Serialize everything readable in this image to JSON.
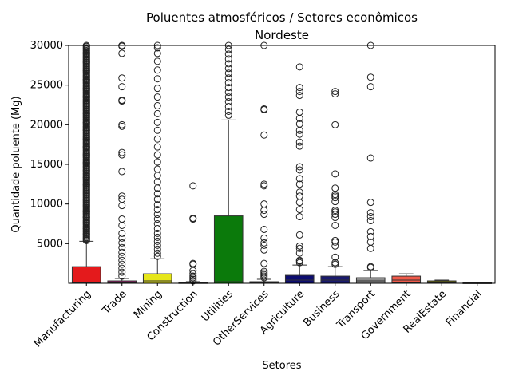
{
  "chart_data": {
    "type": "box",
    "title": "Poluentes atmosféricos / Setores econômicos",
    "subtitle": "Nordeste",
    "xlabel": "Setores",
    "ylabel": "Quantidade poluente (Mg)",
    "ylim": [
      0,
      30000
    ],
    "yticks": [
      5000,
      10000,
      15000,
      20000,
      25000,
      30000
    ],
    "grid": false,
    "categories": [
      "Manufacturing",
      "Trade",
      "Mining",
      "Construction",
      "Utilities",
      "OtherServices",
      "Agriculture",
      "Business",
      "Transport",
      "Government",
      "RealEstate",
      "Financial"
    ],
    "boxes": [
      {
        "name": "Manufacturing",
        "color": "#e41a1c",
        "q1": 0,
        "median": 100,
        "q3": 2100,
        "whisker_low": 0,
        "whisker_high": 5300,
        "outliers": [
          5600,
          6200,
          6900,
          7600,
          8300,
          9000,
          9800,
          10600,
          11500,
          12400,
          13300,
          14200,
          15200,
          16200,
          17200,
          18200,
          19300,
          20300,
          21400,
          22500,
          23500,
          24600,
          25700,
          26800,
          27900,
          29000,
          30000
        ]
      },
      {
        "name": "Trade",
        "color": "#a0146e",
        "q1": 0,
        "median": 50,
        "q3": 300,
        "whisker_low": 0,
        "whisker_high": 600,
        "outliers": [
          900,
          1400,
          1900,
          2400,
          2900,
          3400,
          3900,
          4500,
          5100,
          5700,
          6300,
          7300,
          8100,
          9800,
          10600,
          11000,
          14100,
          16200,
          16500,
          19800,
          20000,
          23000,
          23100,
          24800,
          25900,
          29000,
          29900,
          30000
        ]
      },
      {
        "name": "Mining",
        "color": "#e6e61a",
        "q1": 0,
        "median": 300,
        "q3": 1200,
        "whisker_low": 0,
        "whisker_high": 3100,
        "outliers": [
          3400,
          3800,
          4300,
          4800,
          5300,
          5800,
          6300,
          6900,
          7500,
          8100,
          8700,
          9300,
          9900,
          10600,
          11300,
          12000,
          12800,
          13600,
          14400,
          15300,
          16200,
          17200,
          18200,
          19300,
          20300,
          21400,
          22400,
          23500,
          24600,
          25800,
          26900,
          28000,
          29000,
          29700,
          30000
        ]
      },
      {
        "name": "Construction",
        "color": "#7a2a8a",
        "q1": 0,
        "median": 20,
        "q3": 80,
        "whisker_low": 0,
        "whisker_high": 200,
        "outliers": [
          300,
          500,
          700,
          900,
          1200,
          1600,
          2400,
          2500,
          8100,
          8200,
          12300
        ]
      },
      {
        "name": "Utilities",
        "color": "#0b7a0b",
        "q1": 0,
        "median": 200,
        "q3": 8500,
        "whisker_low": 0,
        "whisker_high": 20600,
        "outliers": [
          21200,
          21700,
          22300,
          22900,
          23500,
          24100,
          24700,
          25300,
          25900,
          26500,
          27100,
          27700,
          28300,
          28900,
          29500,
          30000
        ]
      },
      {
        "name": "OtherServices",
        "color": "#7a2a8a",
        "q1": 0,
        "median": 50,
        "q3": 200,
        "whisker_low": 0,
        "whisker_high": 500,
        "outliers": [
          700,
          900,
          1100,
          1300,
          1500,
          2500,
          4200,
          4800,
          5100,
          5700,
          6800,
          8700,
          9200,
          10000,
          12300,
          12500,
          18700,
          21900,
          22000,
          30000
        ]
      },
      {
        "name": "Agriculture",
        "color": "#0d0d70",
        "q1": 0,
        "median": 400,
        "q3": 1000,
        "whisker_low": 0,
        "whisker_high": 2300,
        "outliers": [
          2600,
          2800,
          2900,
          3800,
          4400,
          4700,
          6100,
          8400,
          9300,
          10200,
          11000,
          11500,
          12500,
          13200,
          14300,
          14700,
          17300,
          17800,
          18800,
          19300,
          20100,
          20800,
          21600,
          23700,
          24200,
          24700,
          27300
        ]
      },
      {
        "name": "Business",
        "color": "#1a1a6e",
        "q1": 0,
        "median": 400,
        "q3": 900,
        "whisker_low": 0,
        "whisker_high": 2100,
        "outliers": [
          2400,
          2600,
          3300,
          4700,
          5200,
          5400,
          7300,
          8300,
          8700,
          9000,
          9200,
          10300,
          10800,
          11000,
          11200,
          12000,
          13800,
          20000,
          23900,
          24200
        ]
      },
      {
        "name": "Transport",
        "color": "#8c8c8c",
        "q1": 0,
        "median": 300,
        "q3": 700,
        "whisker_low": 0,
        "whisker_high": 1600,
        "outliers": [
          2000,
          2100,
          4400,
          5200,
          5900,
          6500,
          7900,
          8400,
          8900,
          10200,
          15800,
          24800,
          26000,
          30000
        ]
      },
      {
        "name": "Government",
        "color": "#f05a4a",
        "q1": 100,
        "median": 400,
        "q3": 900,
        "whisker_low": 0,
        "whisker_high": 1200,
        "outliers": []
      },
      {
        "name": "RealEstate",
        "color": "#6b6b00",
        "q1": 50,
        "median": 150,
        "q3": 300,
        "whisker_low": 0,
        "whisker_high": 400,
        "outliers": []
      },
      {
        "name": "Financial",
        "color": "#1a2a8a",
        "q1": 0,
        "median": 20,
        "q3": 60,
        "whisker_low": 0,
        "whisker_high": 100,
        "outliers": []
      }
    ]
  }
}
